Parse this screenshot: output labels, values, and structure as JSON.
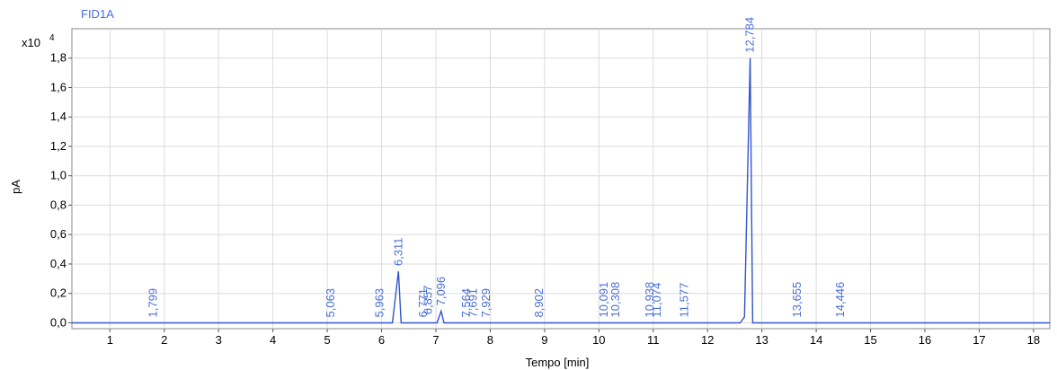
{
  "chart_data": {
    "type": "line",
    "signal": "FID1A",
    "xlabel": "Tempo [min]",
    "ylabel": "pA",
    "y_multiplier": "x10",
    "y_exponent": "4",
    "xlim": [
      0.3,
      18.3
    ],
    "ylim": [
      -0.04,
      2.0
    ],
    "x_ticks": [
      1,
      2,
      3,
      4,
      5,
      6,
      7,
      8,
      9,
      10,
      11,
      12,
      13,
      14,
      15,
      16,
      17,
      18
    ],
    "x_tick_labels": [
      "1",
      "2",
      "3",
      "4",
      "5",
      "6",
      "7",
      "8",
      "9",
      "10",
      "11",
      "12",
      "13",
      "14",
      "15",
      "16",
      "17",
      "18"
    ],
    "y_ticks": [
      0.0,
      0.2,
      0.4,
      0.6,
      0.8,
      1.0,
      1.2,
      1.4,
      1.6,
      1.8
    ],
    "y_tick_labels": [
      "0,0",
      "0,2",
      "0,4",
      "0,6",
      "0,8",
      "1,0",
      "1,2",
      "1,4",
      "1,6",
      "1,8"
    ],
    "grid": true,
    "line_color": "#3355cc",
    "label_color": "#4a6fd6",
    "peaks": [
      {
        "label": "1,799",
        "rt": 1.799,
        "height": 0.0
      },
      {
        "label": "5,063",
        "rt": 5.063,
        "height": 0.0
      },
      {
        "label": "5,963",
        "rt": 5.963,
        "height": 0.0
      },
      {
        "label": "6,311",
        "rt": 6.311,
        "height": 0.35
      },
      {
        "label": "6,771",
        "rt": 6.771,
        "height": 0.0
      },
      {
        "label": "6,857",
        "rt": 6.857,
        "height": 0.02
      },
      {
        "label": "7,096",
        "rt": 7.096,
        "height": 0.08
      },
      {
        "label": "7,564",
        "rt": 7.564,
        "height": 0.0
      },
      {
        "label": "7,691",
        "rt": 7.691,
        "height": 0.0
      },
      {
        "label": "7,929",
        "rt": 7.929,
        "height": 0.0
      },
      {
        "label": "8,902",
        "rt": 8.902,
        "height": 0.0
      },
      {
        "label": "10,091",
        "rt": 10.091,
        "height": 0.0
      },
      {
        "label": "10,308",
        "rt": 10.308,
        "height": 0.0
      },
      {
        "label": "10,938",
        "rt": 10.938,
        "height": 0.0
      },
      {
        "label": "11,074",
        "rt": 11.074,
        "height": 0.0
      },
      {
        "label": "11,577",
        "rt": 11.577,
        "height": 0.0
      },
      {
        "label": "12,784",
        "rt": 12.784,
        "height": 1.8
      },
      {
        "label": "13,655",
        "rt": 13.655,
        "height": 0.0
      },
      {
        "label": "14,446",
        "rt": 14.446,
        "height": 0.0
      }
    ],
    "baseline": 0.0,
    "trace": [
      [
        0.3,
        0.0
      ],
      [
        6.2,
        0.0
      ],
      [
        6.311,
        0.35
      ],
      [
        6.36,
        0.0
      ],
      [
        7.02,
        0.0
      ],
      [
        7.096,
        0.08
      ],
      [
        7.15,
        0.0
      ],
      [
        12.6,
        0.0
      ],
      [
        12.68,
        0.04
      ],
      [
        12.784,
        1.8
      ],
      [
        12.83,
        0.0
      ],
      [
        18.3,
        0.0
      ]
    ]
  }
}
